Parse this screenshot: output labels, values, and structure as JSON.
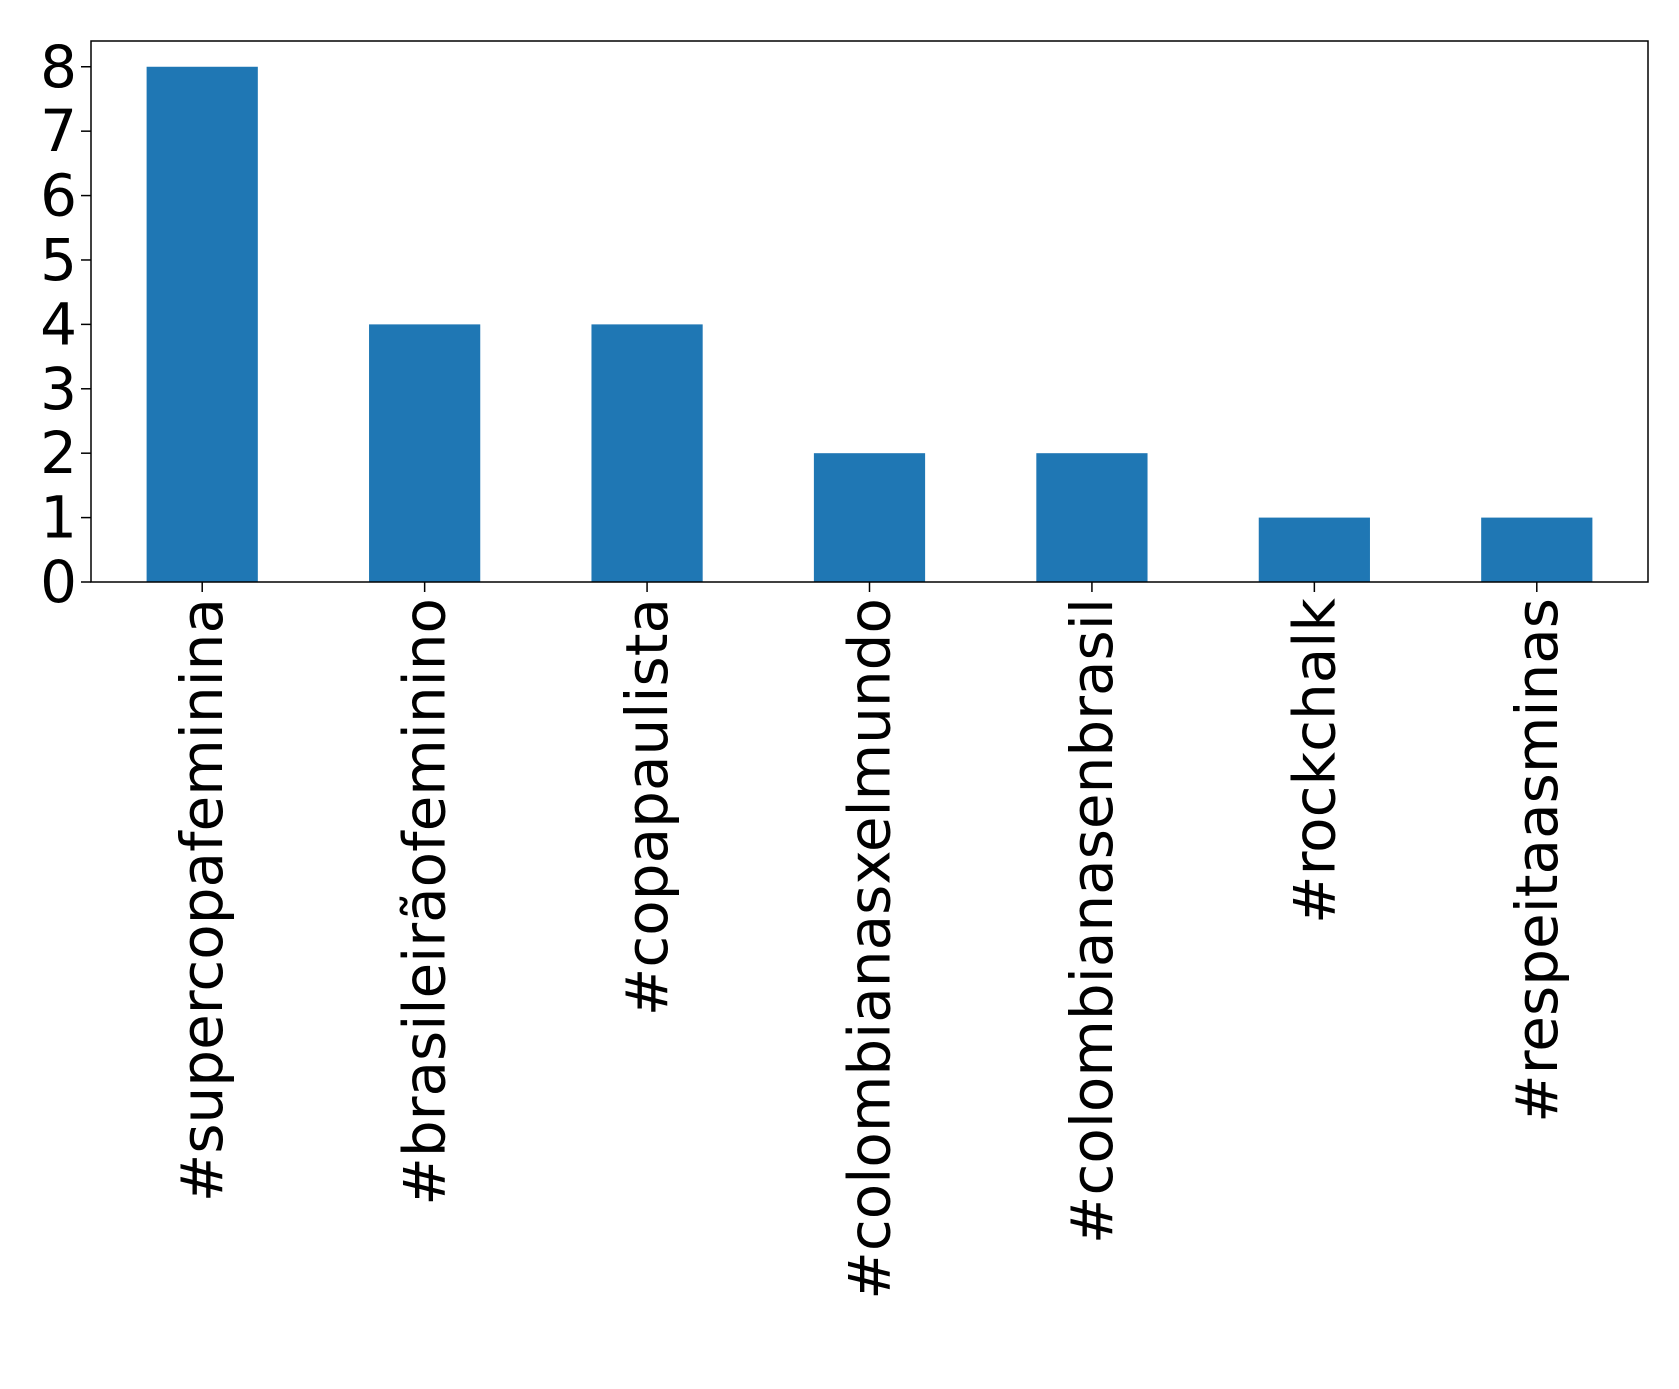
{
  "chart_data": {
    "type": "bar",
    "categories": [
      "#supercopafeminina",
      "#brasileirãofeminino",
      "#copapaulista",
      "#colombianasxelmundo",
      "#colombianasenbrasil",
      "#rockchalk",
      "#respeitaasminas"
    ],
    "values": [
      8,
      4,
      4,
      2,
      2,
      1,
      1
    ],
    "title": "",
    "xlabel": "",
    "ylabel": "",
    "ylim": [
      0,
      8.4
    ],
    "yticks": [
      0,
      1,
      2,
      3,
      4,
      5,
      6,
      7,
      8
    ],
    "grid": false,
    "colors": {
      "bar": "#1f77b4",
      "axis": "#000000"
    }
  }
}
